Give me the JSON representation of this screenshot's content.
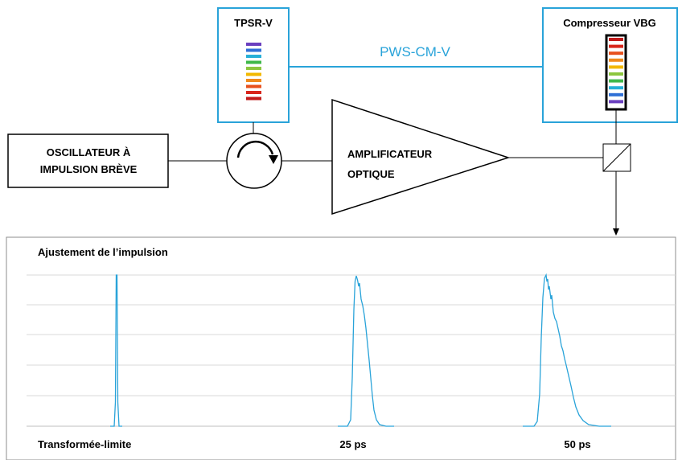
{
  "diagram": {
    "tpsr_label": "TPSR-V",
    "compressor_label": "Compresseur VBG",
    "link_label": "PWS-CM-V",
    "oscillator_line1": "OSCILLATEUR À",
    "oscillator_line2": "IMPULSION BRÈVE",
    "amplifier_line1": "AMPLIFICATEUR",
    "amplifier_line2": "OPTIQUE",
    "grating_colors_tpsr": [
      "#6a3fbf",
      "#2f6fd6",
      "#27b0d8",
      "#3fb84a",
      "#8cc63f",
      "#f2b800",
      "#f08a1c",
      "#e8501c",
      "#d9261c",
      "#c21a1a"
    ],
    "grating_colors_compressor": [
      "#c21a1a",
      "#d9261c",
      "#e8501c",
      "#f08a1c",
      "#f2b800",
      "#8cc63f",
      "#3fb84a",
      "#27b0d8",
      "#2f6fd6",
      "#6a3fbf"
    ],
    "accent_color": "#29a3d9"
  },
  "panel": {
    "title": "Ajustement de l’impulsion",
    "labels": [
      "Transformée-limite",
      "25 ps",
      "50 ps"
    ]
  }
}
